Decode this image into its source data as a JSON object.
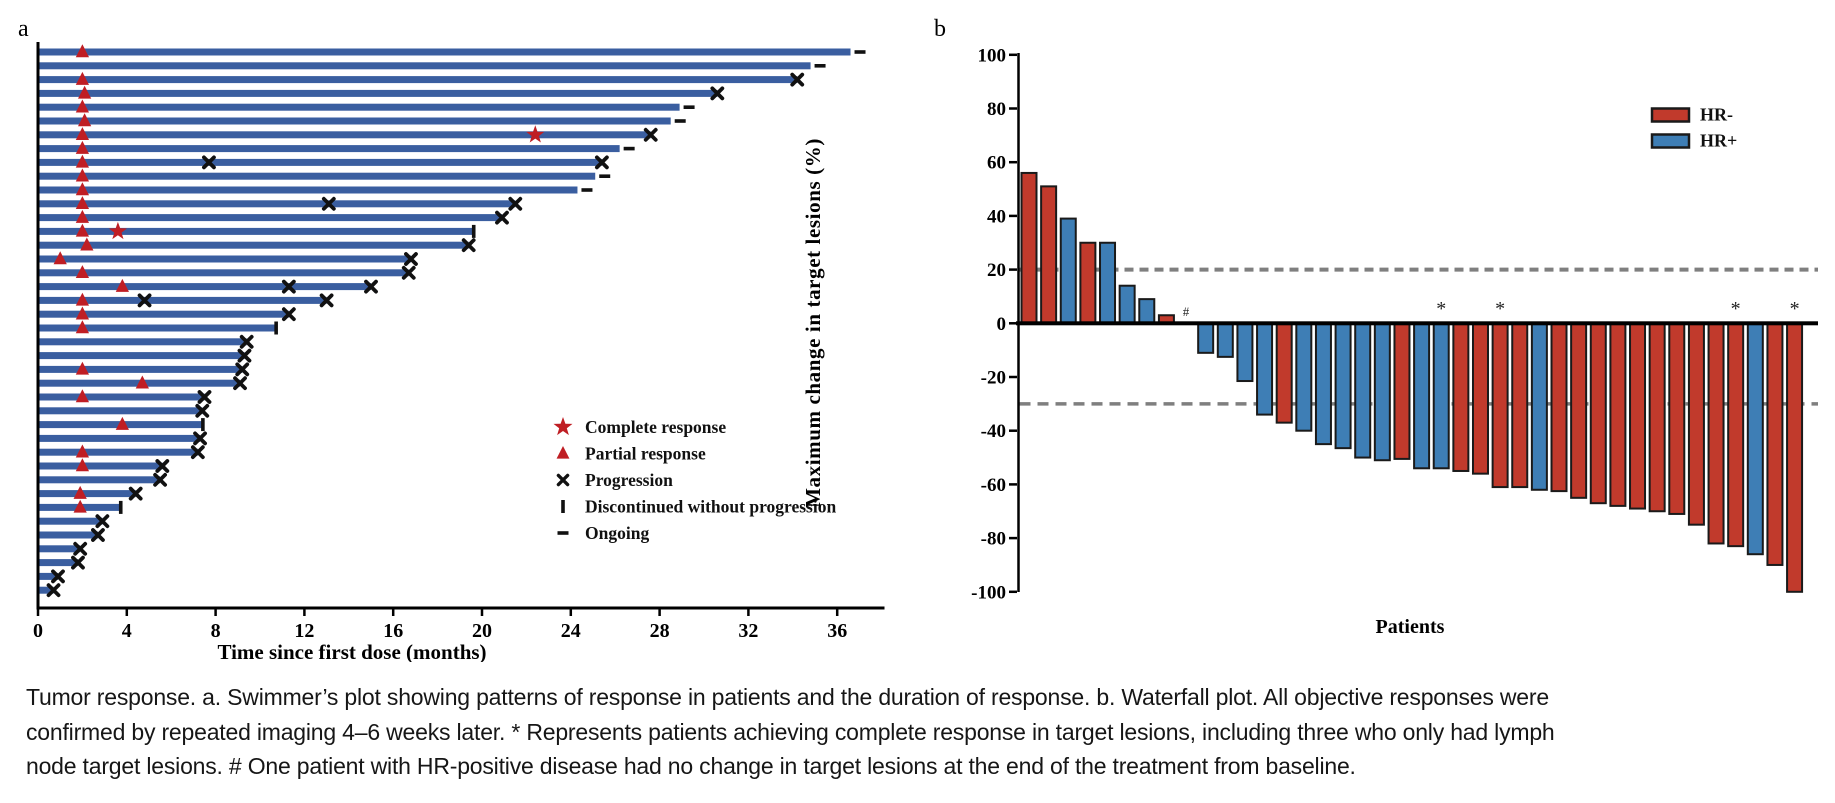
{
  "caption": {
    "line1": "Tumor response. a. Swimmer’s plot showing patterns of response in patients and the duration of response. b. Waterfall plot. All objective responses were",
    "line2": "confirmed by repeated imaging 4–6 weeks later. * Represents patients achieving complete response in target lesions, including three who only had lymph",
    "line3": "node target lesions. # One patient with HR-positive disease had no change in target lesions at the end of the treatment from baseline."
  },
  "chart_data": [
    {
      "type": "bar",
      "subtype": "swimmer",
      "panel": "a",
      "xlabel": "Time since first dose (months)",
      "x_ticks": [
        0,
        4,
        8,
        12,
        16,
        20,
        24,
        28,
        32,
        36
      ],
      "xlim": [
        0,
        38.2
      ],
      "grid": false,
      "colors": {
        "bar": "#3a5ea0",
        "response_marker": "#bf1e24",
        "event_marker": "#111111"
      },
      "legend": [
        {
          "marker": "star",
          "label": "Complete response"
        },
        {
          "marker": "triangle",
          "label": "Partial response"
        },
        {
          "marker": "x",
          "label": "Progression"
        },
        {
          "marker": "bar",
          "label": "Discontinued without progression"
        },
        {
          "marker": "dash",
          "label": "Ongoing"
        }
      ],
      "patients": [
        {
          "duration_months": 36.6,
          "partial_response_at": 2.0,
          "end": "ongoing"
        },
        {
          "duration_months": 34.8,
          "end": "ongoing"
        },
        {
          "duration_months": 34.2,
          "partial_response_at": 2.0,
          "end": "progression"
        },
        {
          "duration_months": 30.6,
          "partial_response_at": 2.1,
          "end": "progression"
        },
        {
          "duration_months": 28.9,
          "partial_response_at": 2.0,
          "end": "ongoing"
        },
        {
          "duration_months": 28.5,
          "partial_response_at": 2.1,
          "end": "ongoing"
        },
        {
          "duration_months": 27.6,
          "partial_response_at": 2.0,
          "complete_response_at": 22.4,
          "end": "progression"
        },
        {
          "duration_months": 26.2,
          "partial_response_at": 2.0,
          "end": "ongoing"
        },
        {
          "duration_months": 25.4,
          "partial_response_at": 2.0,
          "progression_at": [
            7.7
          ],
          "end": "progression"
        },
        {
          "duration_months": 25.1,
          "partial_response_at": 2.0,
          "end": "ongoing"
        },
        {
          "duration_months": 24.3,
          "partial_response_at": 2.0,
          "end": "ongoing"
        },
        {
          "duration_months": 21.5,
          "partial_response_at": 2.0,
          "progression_at": [
            13.1
          ],
          "end": "progression"
        },
        {
          "duration_months": 20.9,
          "partial_response_at": 2.0,
          "end": "progression"
        },
        {
          "duration_months": 19.6,
          "partial_response_at": 2.0,
          "complete_response_at": 3.6,
          "end": "discontinued"
        },
        {
          "duration_months": 19.4,
          "partial_response_at": 2.2,
          "end": "progression"
        },
        {
          "duration_months": 16.8,
          "partial_response_at": 1.0,
          "end": "progression"
        },
        {
          "duration_months": 16.7,
          "partial_response_at": 2.0,
          "end": "progression"
        },
        {
          "duration_months": 15.0,
          "partial_response_at": 3.8,
          "progression_at": [
            11.3
          ],
          "end": "progression"
        },
        {
          "duration_months": 13.0,
          "partial_response_at": 2.0,
          "progression_at": [
            4.8
          ],
          "end": "progression"
        },
        {
          "duration_months": 11.3,
          "partial_response_at": 2.0,
          "end": "progression"
        },
        {
          "duration_months": 10.7,
          "partial_response_at": 2.0,
          "end": "discontinued"
        },
        {
          "duration_months": 9.4,
          "end": "progression"
        },
        {
          "duration_months": 9.3,
          "end": "progression"
        },
        {
          "duration_months": 9.2,
          "partial_response_at": 2.0,
          "end": "progression"
        },
        {
          "duration_months": 9.1,
          "partial_response_at": 4.7,
          "end": "progression"
        },
        {
          "duration_months": 7.5,
          "partial_response_at": 2.0,
          "end": "progression"
        },
        {
          "duration_months": 7.4,
          "end": "progression"
        },
        {
          "duration_months": 7.4,
          "partial_response_at": 3.8,
          "end": "discontinued"
        },
        {
          "duration_months": 7.3,
          "end": "progression"
        },
        {
          "duration_months": 7.2,
          "partial_response_at": 2.0,
          "end": "progression"
        },
        {
          "duration_months": 5.6,
          "partial_response_at": 2.0,
          "end": "progression"
        },
        {
          "duration_months": 5.5,
          "end": "progression"
        },
        {
          "duration_months": 4.4,
          "partial_response_at": 1.9,
          "end": "progression"
        },
        {
          "duration_months": 3.7,
          "partial_response_at": 1.9,
          "end": "discontinued"
        },
        {
          "duration_months": 2.9,
          "end": "progression"
        },
        {
          "duration_months": 2.7,
          "end": "progression"
        },
        {
          "duration_months": 1.9,
          "end": "progression"
        },
        {
          "duration_months": 1.8,
          "end": "progression"
        },
        {
          "duration_months": 0.9,
          "end": "progression"
        },
        {
          "duration_months": 0.7,
          "end": "progression"
        }
      ]
    },
    {
      "type": "bar",
      "subtype": "waterfall",
      "panel": "b",
      "ylabel": "Maximum change in target lesions (%)",
      "xlabel": "Patients",
      "ylim": [
        -100,
        100
      ],
      "y_ticks": [
        100,
        80,
        60,
        40,
        20,
        0,
        -20,
        -40,
        -60,
        -80,
        -100
      ],
      "reference_lines": [
        20,
        -30
      ],
      "reference_color": "#7f7f7f",
      "grid": false,
      "legend": [
        {
          "name": "HR-",
          "color": "#c13a2c"
        },
        {
          "name": "HR+",
          "color": "#3e7eb5"
        }
      ],
      "bars": [
        {
          "change": 56,
          "hr": "HR-"
        },
        {
          "change": 51,
          "hr": "HR-"
        },
        {
          "change": 39,
          "hr": "HR+"
        },
        {
          "change": 30,
          "hr": "HR-"
        },
        {
          "change": 30,
          "hr": "HR+"
        },
        {
          "change": 14,
          "hr": "HR+"
        },
        {
          "change": 9,
          "hr": "HR+"
        },
        {
          "change": 3,
          "hr": "HR-"
        },
        {
          "change": 0,
          "hr": "HR+",
          "mark": "#"
        },
        {
          "change": -11,
          "hr": "HR+"
        },
        {
          "change": -12.5,
          "hr": "HR+"
        },
        {
          "change": -21.5,
          "hr": "HR+"
        },
        {
          "change": -34,
          "hr": "HR+"
        },
        {
          "change": -37,
          "hr": "HR-"
        },
        {
          "change": -40,
          "hr": "HR+"
        },
        {
          "change": -45,
          "hr": "HR+"
        },
        {
          "change": -46.5,
          "hr": "HR+"
        },
        {
          "change": -50,
          "hr": "HR+"
        },
        {
          "change": -51,
          "hr": "HR+"
        },
        {
          "change": -50.5,
          "hr": "HR-"
        },
        {
          "change": -54,
          "hr": "HR+"
        },
        {
          "change": -54,
          "hr": "HR+",
          "mark": "*"
        },
        {
          "change": -55,
          "hr": "HR-"
        },
        {
          "change": -56,
          "hr": "HR-"
        },
        {
          "change": -61,
          "hr": "HR-",
          "mark": "*"
        },
        {
          "change": -61,
          "hr": "HR-"
        },
        {
          "change": -62,
          "hr": "HR+"
        },
        {
          "change": -62.5,
          "hr": "HR-"
        },
        {
          "change": -65,
          "hr": "HR-"
        },
        {
          "change": -67,
          "hr": "HR-"
        },
        {
          "change": -68,
          "hr": "HR-"
        },
        {
          "change": -69,
          "hr": "HR-"
        },
        {
          "change": -70,
          "hr": "HR-"
        },
        {
          "change": -71,
          "hr": "HR-"
        },
        {
          "change": -75,
          "hr": "HR-"
        },
        {
          "change": -82,
          "hr": "HR-"
        },
        {
          "change": -83,
          "hr": "HR-",
          "mark": "*"
        },
        {
          "change": -86,
          "hr": "HR+"
        },
        {
          "change": -90,
          "hr": "HR-"
        },
        {
          "change": -100,
          "hr": "HR-",
          "mark": "*"
        }
      ]
    }
  ]
}
